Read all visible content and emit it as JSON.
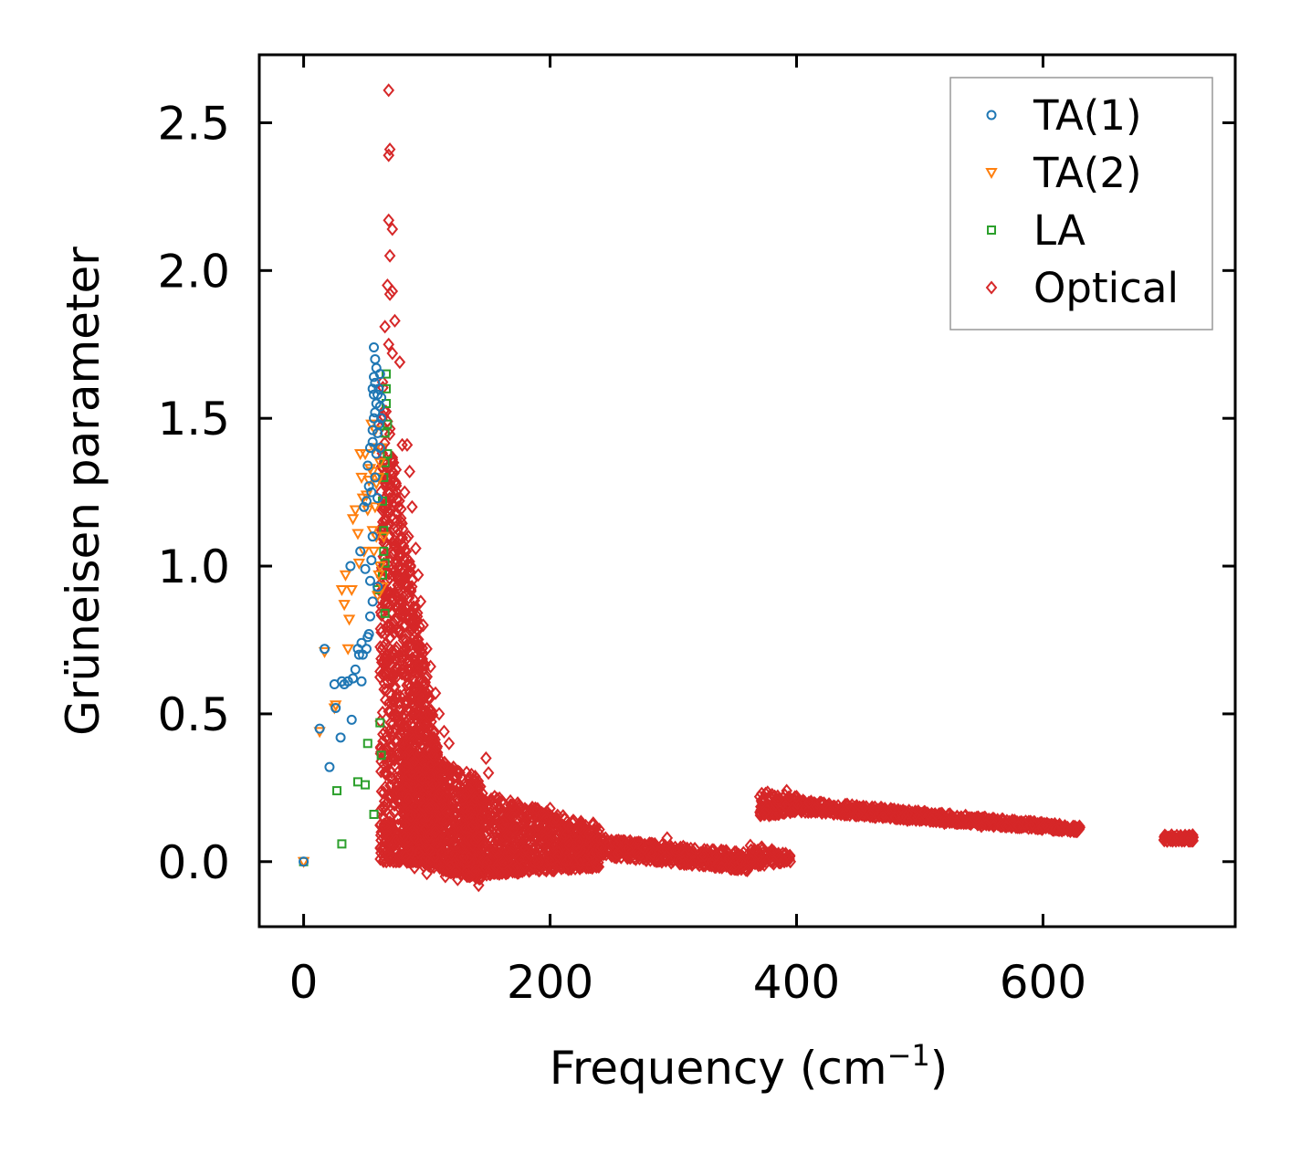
{
  "chart_data": {
    "type": "scatter",
    "title": "",
    "xlabel": "Frequency (cm",
    "xlabel_sup": "−1",
    "xlabel_close": ")",
    "ylabel": "Grüneisen parameter",
    "xlim": [
      -36,
      756
    ],
    "ylim": [
      -0.22,
      2.73
    ],
    "xticks": [
      0,
      200,
      400,
      600
    ],
    "xtick_labels": [
      "0",
      "200",
      "400",
      "600"
    ],
    "yticks": [
      0.0,
      0.5,
      1.0,
      1.5,
      2.0,
      2.5
    ],
    "ytick_labels": [
      "0.0",
      "0.5",
      "1.0",
      "1.5",
      "2.0",
      "2.5"
    ],
    "grid": false,
    "legend_position": "top-right",
    "series": [
      {
        "name": "TA(1)",
        "color": "#1f77b4",
        "marker": "circle",
        "points": [
          [
            0,
            0.0
          ],
          [
            13,
            0.45
          ],
          [
            17,
            0.72
          ],
          [
            21,
            0.32
          ],
          [
            25,
            0.6
          ],
          [
            26,
            0.52
          ],
          [
            30,
            0.42
          ],
          [
            31,
            0.61
          ],
          [
            33,
            0.6
          ],
          [
            36,
            0.61
          ],
          [
            38,
            1.0
          ],
          [
            39,
            0.48
          ],
          [
            40,
            0.62
          ],
          [
            42,
            0.65
          ],
          [
            44,
            0.72
          ],
          [
            45,
            0.7
          ],
          [
            46,
            1.05
          ],
          [
            47,
            0.74
          ],
          [
            47,
            0.61
          ],
          [
            48,
            0.7
          ],
          [
            49,
            1.2
          ],
          [
            50,
            0.99
          ],
          [
            51,
            0.72
          ],
          [
            51,
            1.22
          ],
          [
            52,
            0.76
          ],
          [
            52,
            1.34
          ],
          [
            53,
            0.77
          ],
          [
            53,
            1.27
          ],
          [
            54,
            0.95
          ],
          [
            54,
            1.4
          ],
          [
            54,
            0.83
          ],
          [
            55,
            1.02
          ],
          [
            55,
            1.25
          ],
          [
            56,
            0.88
          ],
          [
            56,
            1.1
          ],
          [
            56,
            1.42
          ],
          [
            56,
            1.46
          ],
          [
            56,
            1.6
          ],
          [
            57,
            1.5
          ],
          [
            57,
            1.58
          ],
          [
            57,
            1.64
          ],
          [
            57,
            1.74
          ],
          [
            58,
            1.3
          ],
          [
            58,
            1.52
          ],
          [
            58,
            1.62
          ],
          [
            58,
            1.7
          ],
          [
            59,
            1.38
          ],
          [
            59,
            1.55
          ],
          [
            59,
            1.67
          ],
          [
            60,
            1.45
          ],
          [
            60,
            1.23
          ],
          [
            60,
            0.93
          ],
          [
            60,
            1.58
          ],
          [
            61,
            1.48
          ],
          [
            61,
            1.6
          ],
          [
            62,
            1.4
          ],
          [
            62,
            1.54
          ],
          [
            62,
            1.65
          ],
          [
            63,
            1.5
          ],
          [
            63,
            1.57
          ]
        ]
      },
      {
        "name": "TA(2)",
        "color": "#ff7f0e",
        "marker": "triangle-down",
        "points": [
          [
            0,
            0.0
          ],
          [
            13,
            0.44
          ],
          [
            17,
            0.71
          ],
          [
            25,
            0.52
          ],
          [
            26,
            0.53
          ],
          [
            31,
            0.92
          ],
          [
            33,
            0.87
          ],
          [
            34,
            0.97
          ],
          [
            36,
            0.72
          ],
          [
            37,
            0.82
          ],
          [
            39,
            0.92
          ],
          [
            40,
            1.16
          ],
          [
            42,
            1.19
          ],
          [
            44,
            1.11
          ],
          [
            45,
            1.01
          ],
          [
            46,
            1.38
          ],
          [
            47,
            1.3
          ],
          [
            48,
            1.23
          ],
          [
            49,
            1.05
          ],
          [
            50,
            1.38
          ],
          [
            51,
            1.24
          ],
          [
            52,
            1.19
          ],
          [
            53,
            1.29
          ],
          [
            54,
            1.33
          ],
          [
            55,
            1.48
          ],
          [
            56,
            1.12
          ],
          [
            56,
            1.32
          ],
          [
            57,
            1.05
          ],
          [
            57,
            1.4
          ],
          [
            58,
            1.2
          ],
          [
            58,
            1.46
          ],
          [
            59,
            1.1
          ],
          [
            59,
            1.28
          ],
          [
            60,
            0.9
          ],
          [
            61,
            0.97
          ],
          [
            61,
            1.3
          ],
          [
            62,
            1.0
          ],
          [
            62,
            1.35
          ],
          [
            63,
            1.4
          ],
          [
            64,
            0.93
          ],
          [
            65,
            1.1
          ]
        ]
      },
      {
        "name": "LA",
        "color": "#2ca02c",
        "marker": "square",
        "points": [
          [
            0,
            0.0
          ],
          [
            27,
            0.24
          ],
          [
            31,
            0.06
          ],
          [
            44,
            0.27
          ],
          [
            50,
            0.26
          ],
          [
            52,
            0.4
          ],
          [
            57,
            0.16
          ],
          [
            60,
            0.92
          ],
          [
            62,
            0.47
          ],
          [
            63,
            0.36
          ],
          [
            64,
            0.97
          ],
          [
            64,
            1.22
          ],
          [
            65,
            1.05
          ],
          [
            65,
            1.12
          ],
          [
            65,
            1.3
          ],
          [
            66,
            0.84
          ],
          [
            66,
            1.01
          ],
          [
            66,
            1.35
          ],
          [
            66,
            1.45
          ],
          [
            67,
            1.55
          ],
          [
            67,
            1.6
          ],
          [
            67,
            1.65
          ],
          [
            68,
            1.48
          ],
          [
            68,
            1.38
          ]
        ]
      },
      {
        "name": "Optical",
        "color": "#d62728",
        "marker": "diamond",
        "points": [
          [
            69,
            2.61
          ],
          [
            70,
            2.41
          ],
          [
            69,
            2.39
          ],
          [
            69,
            2.17
          ],
          [
            72,
            2.14
          ],
          [
            70,
            2.05
          ],
          [
            68,
            1.95
          ],
          [
            72,
            1.93
          ],
          [
            70,
            1.92
          ],
          [
            66,
            1.81
          ],
          [
            74,
            1.83
          ],
          [
            69,
            1.75
          ],
          [
            72,
            1.72
          ],
          [
            78,
            1.69
          ],
          [
            80,
            1.41
          ],
          [
            84,
            1.41
          ],
          [
            73,
            1.35
          ],
          [
            86,
            1.32
          ],
          [
            75,
            1.28
          ],
          [
            82,
            1.25
          ],
          [
            88,
            1.2
          ],
          [
            79,
            1.15
          ],
          [
            85,
            1.1
          ],
          [
            91,
            1.06
          ],
          [
            77,
            1.0
          ],
          [
            93,
            0.97
          ],
          [
            87,
            0.92
          ],
          [
            95,
            0.88
          ],
          [
            81,
            0.84
          ],
          [
            97,
            0.8
          ],
          [
            90,
            0.76
          ],
          [
            100,
            0.72
          ],
          [
            85,
            0.68
          ],
          [
            103,
            0.66
          ],
          [
            94,
            0.61
          ],
          [
            107,
            0.57
          ],
          [
            89,
            0.53
          ],
          [
            110,
            0.5
          ],
          [
            98,
            0.47
          ],
          [
            114,
            0.44
          ],
          [
            92,
            0.41
          ],
          [
            118,
            0.4
          ],
          [
            105,
            0.36
          ],
          [
            121,
            0.31
          ],
          [
            96,
            0.28
          ],
          [
            125,
            0.26
          ],
          [
            110,
            0.23
          ],
          [
            129,
            0.21
          ],
          [
            102,
            0.18
          ],
          [
            133,
            0.16
          ],
          [
            116,
            0.14
          ],
          [
            137,
            0.12
          ],
          [
            107,
            0.1
          ],
          [
            141,
            0.08
          ],
          [
            121,
            0.06
          ],
          [
            145,
            0.05
          ],
          [
            112,
            0.03
          ],
          [
            75,
            0.0
          ],
          [
            83,
            0.02
          ],
          [
            90,
            -0.02
          ],
          [
            100,
            -0.04
          ],
          [
            115,
            -0.05
          ],
          [
            125,
            -0.06
          ],
          [
            135,
            -0.05
          ],
          [
            142,
            -0.08
          ],
          [
            148,
            0.35
          ],
          [
            150,
            0.3
          ],
          [
            155,
            0.22
          ],
          [
            160,
            0.18
          ],
          [
            170,
            0.15
          ],
          [
            180,
            0.13
          ],
          [
            190,
            0.12
          ],
          [
            200,
            0.18
          ],
          [
            205,
            0.15
          ],
          [
            215,
            0.12
          ],
          [
            225,
            0.11
          ],
          [
            235,
            0.13
          ],
          [
            245,
            0.08
          ],
          [
            255,
            0.06
          ],
          [
            265,
            0.07
          ],
          [
            275,
            0.05
          ],
          [
            285,
            0.06
          ],
          [
            295,
            0.08
          ],
          [
            305,
            0.04
          ],
          [
            315,
            0.03
          ],
          [
            325,
            0.02
          ],
          [
            335,
            0.02
          ],
          [
            345,
            0.01
          ],
          [
            355,
            0.0
          ],
          [
            360,
            -0.03
          ],
          [
            370,
            0.02
          ],
          [
            380,
            0.04
          ],
          [
            385,
            0.02
          ],
          [
            390,
            0.0
          ],
          [
            395,
            0.0
          ],
          [
            372,
            0.2
          ],
          [
            378,
            0.22
          ],
          [
            385,
            0.21
          ],
          [
            392,
            0.24
          ],
          [
            400,
            0.22
          ],
          [
            410,
            0.2
          ],
          [
            420,
            0.2
          ],
          [
            430,
            0.18
          ],
          [
            440,
            0.17
          ],
          [
            450,
            0.16
          ],
          [
            460,
            0.16
          ],
          [
            470,
            0.15
          ],
          [
            480,
            0.15
          ],
          [
            490,
            0.14
          ],
          [
            500,
            0.14
          ],
          [
            510,
            0.14
          ],
          [
            520,
            0.13
          ],
          [
            530,
            0.13
          ],
          [
            540,
            0.13
          ],
          [
            550,
            0.12
          ],
          [
            560,
            0.12
          ],
          [
            570,
            0.12
          ],
          [
            580,
            0.12
          ],
          [
            590,
            0.12
          ],
          [
            600,
            0.12
          ],
          [
            610,
            0.11
          ],
          [
            620,
            0.11
          ],
          [
            628,
            0.11
          ],
          [
            700,
            0.08
          ],
          [
            705,
            0.08
          ],
          [
            710,
            0.08
          ],
          [
            715,
            0.08
          ],
          [
            720,
            0.08
          ]
        ],
        "dense_regions": [
          {
            "x": [
              62,
              110
            ],
            "y_upper": [
              1.7,
              0.35
            ],
            "y_lower": [
              0.0,
              0.0
            ],
            "n": 1200
          },
          {
            "x": [
              80,
              145
            ],
            "y_upper": [
              0.4,
              0.28
            ],
            "y_lower": [
              0.0,
              -0.06
            ],
            "n": 700
          },
          {
            "x": [
              130,
              240
            ],
            "y_upper": [
              0.25,
              0.12
            ],
            "y_lower": [
              -0.05,
              -0.02
            ],
            "n": 900
          },
          {
            "x": [
              240,
              360
            ],
            "y_upper": [
              0.08,
              0.03
            ],
            "y_lower": [
              0.02,
              -0.03
            ],
            "n": 400
          },
          {
            "x": [
              360,
              395
            ],
            "y_upper": [
              0.06,
              0.03
            ],
            "y_lower": [
              -0.02,
              0.0
            ],
            "n": 80
          },
          {
            "x": [
              370,
              400
            ],
            "y_upper": [
              0.24,
              0.22
            ],
            "y_lower": [
              0.15,
              0.17
            ],
            "n": 120
          },
          {
            "x": [
              400,
              630
            ],
            "y_upper": [
              0.21,
              0.12
            ],
            "y_lower": [
              0.17,
              0.1
            ],
            "n": 700
          },
          {
            "x": [
              698,
              722
            ],
            "y_upper": [
              0.09,
              0.09
            ],
            "y_lower": [
              0.07,
              0.07
            ],
            "n": 60
          }
        ]
      }
    ]
  }
}
